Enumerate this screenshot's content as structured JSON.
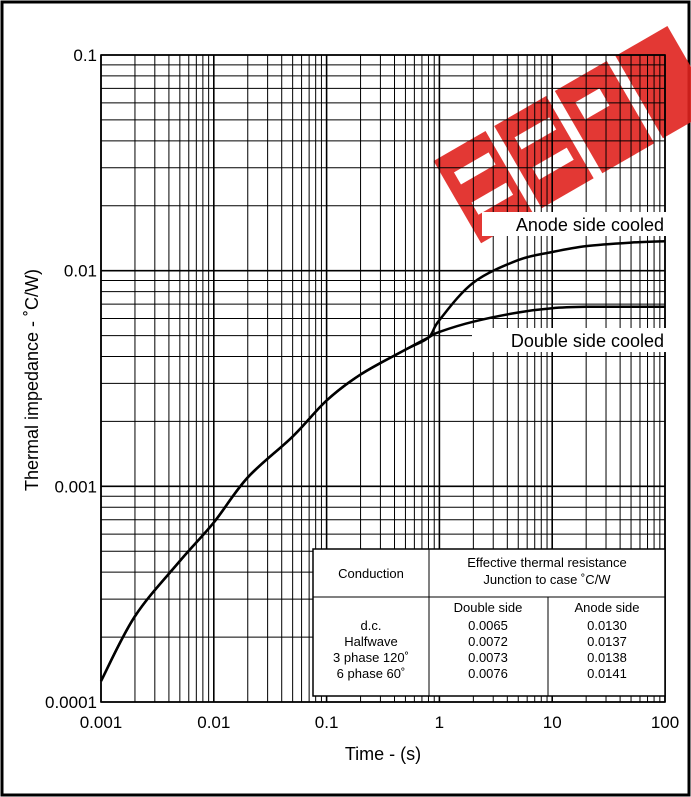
{
  "chart_data": {
    "type": "line",
    "xlabel": "Time - (s)",
    "ylabel": "Thermal impedance - ˚C/W)",
    "x_scale": "log",
    "y_scale": "log",
    "xlim": [
      0.001,
      100
    ],
    "ylim": [
      0.0001,
      0.1
    ],
    "x_tick_labels": [
      "0.001",
      "0.01",
      "0.1",
      "1",
      "10",
      "100"
    ],
    "y_tick_labels": [
      "0.0001",
      "0.001",
      "0.01",
      "0.1"
    ],
    "grid": true,
    "series": [
      {
        "name": "Anode side cooled",
        "x": [
          0.001,
          0.002,
          0.005,
          0.01,
          0.02,
          0.05,
          0.1,
          0.2,
          0.5,
          0.8,
          1,
          2,
          5,
          10,
          20,
          50,
          100
        ],
        "y": [
          0.000125,
          0.00025,
          0.00045,
          0.00068,
          0.0011,
          0.0017,
          0.0025,
          0.0033,
          0.0043,
          0.0049,
          0.0059,
          0.0088,
          0.0112,
          0.0122,
          0.013,
          0.0135,
          0.0137
        ]
      },
      {
        "name": "Double side cooled",
        "x": [
          0.001,
          0.002,
          0.005,
          0.01,
          0.02,
          0.05,
          0.1,
          0.2,
          0.5,
          0.8,
          1,
          2,
          5,
          10,
          20,
          50,
          100
        ],
        "y": [
          0.000125,
          0.00025,
          0.00045,
          0.00068,
          0.0011,
          0.0017,
          0.0025,
          0.0033,
          0.0043,
          0.0049,
          0.0052,
          0.0058,
          0.0064,
          0.0067,
          0.0068,
          0.0068,
          0.0068
        ]
      }
    ],
    "table": {
      "header_left": "Conduction",
      "header_right_line1": "Effective thermal resistance",
      "header_right_line2": "Junction to case ˚C/W",
      "col_double": "Double side",
      "col_anode": "Anode side",
      "rows": [
        {
          "conduction": "d.c.",
          "double": "0.0065",
          "anode": "0.0130"
        },
        {
          "conduction": "Halfwave",
          "double": "0.0072",
          "anode": "0.0137"
        },
        {
          "conduction": "3 phase 120˚",
          "double": "0.0073",
          "anode": "0.0138"
        },
        {
          "conduction": "6 phase 60˚",
          "double": "0.0076",
          "anode": "0.0141"
        }
      ]
    },
    "colors": {
      "curve": "#000000",
      "grid": "#000000",
      "watermark": "#e0231f"
    }
  }
}
